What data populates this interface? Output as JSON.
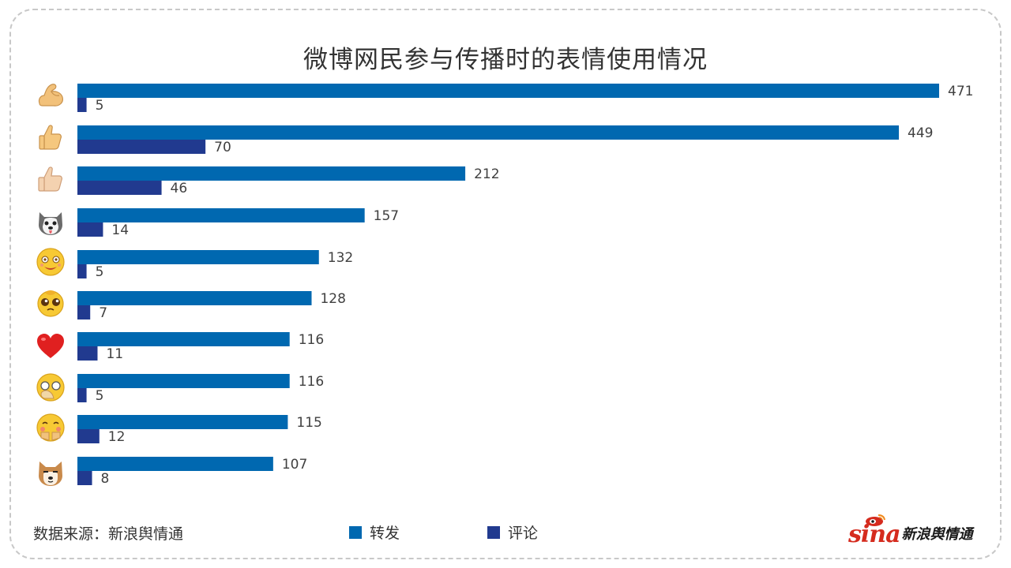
{
  "chart_data": {
    "type": "bar",
    "orientation": "horizontal",
    "title": "微博网民参与传播时的表情使用情况",
    "categories": [
      "flexed-biceps",
      "thumbs-up-yellow",
      "thumbs-up-light",
      "husky-dog",
      "heart-eyes-face",
      "pleading-face",
      "red-heart",
      "facepalm-face",
      "shy-face",
      "shiba-dog"
    ],
    "series": [
      {
        "name": "转发",
        "color": "#0068b0",
        "values": [
          471,
          449,
          212,
          157,
          132,
          128,
          116,
          116,
          115,
          107
        ]
      },
      {
        "name": "评论",
        "color": "#213a8f",
        "values": [
          5,
          70,
          46,
          14,
          5,
          7,
          11,
          5,
          12,
          8
        ]
      }
    ],
    "xlim": [
      0,
      471
    ],
    "grid": false,
    "legend_position": "bottom"
  },
  "footer": {
    "source": "数据来源：新浪舆情通"
  },
  "logo": {
    "mark": "sina",
    "text": "新浪舆情通",
    "icon": "sina-eye-logo-icon"
  }
}
